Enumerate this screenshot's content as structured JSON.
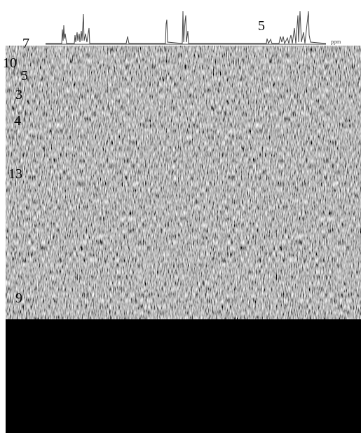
{
  "labels": {
    "top": "5",
    "ppm": "ppm",
    "side": [
      "7",
      "10",
      "5",
      "3",
      "4",
      "13",
      "9"
    ]
  }
}
